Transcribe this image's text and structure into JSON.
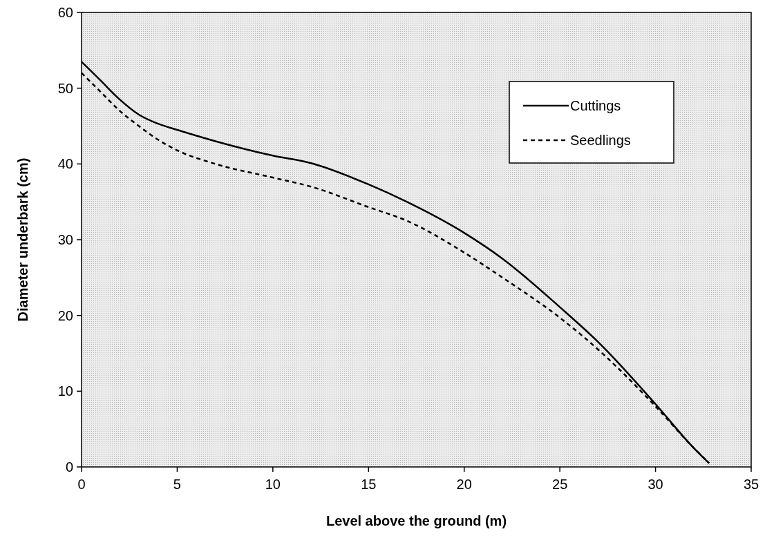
{
  "chart_data": {
    "type": "line",
    "xlabel": "Level above the ground (m)",
    "ylabel": "Diameter underbark (cm)",
    "xlim": [
      0,
      35
    ],
    "ylim": [
      0,
      60
    ],
    "xticks": [
      0,
      5,
      10,
      15,
      20,
      25,
      30,
      35
    ],
    "yticks": [
      0,
      10,
      20,
      30,
      40,
      50,
      60
    ],
    "legend": "top right",
    "grid": false,
    "series": [
      {
        "name": "Cuttings",
        "color": "#000000",
        "line_style": "solid",
        "x": [
          0,
          1,
          2,
          3,
          4,
          5,
          7,
          10,
          12,
          15,
          17,
          20,
          22,
          25,
          27,
          30,
          32,
          32.8
        ],
        "values": [
          53.5,
          51,
          48.5,
          46.5,
          45.3,
          44.5,
          43,
          41.1,
          40.1,
          37.3,
          35,
          30.9,
          27.5,
          21.1,
          16.5,
          8.3,
          2.5,
          0.5
        ]
      },
      {
        "name": "Seedlings",
        "color": "#000000",
        "line_style": "dashed",
        "x": [
          0,
          1,
          2,
          3,
          4,
          5,
          7,
          10,
          12,
          15,
          17,
          20,
          22,
          25,
          27,
          30,
          32,
          32.8
        ],
        "values": [
          52,
          49.5,
          47,
          45,
          43.2,
          41.8,
          40,
          38.2,
          37,
          34.3,
          32.5,
          28.3,
          25,
          19.7,
          15.5,
          8,
          2.5,
          0.5
        ]
      }
    ]
  }
}
